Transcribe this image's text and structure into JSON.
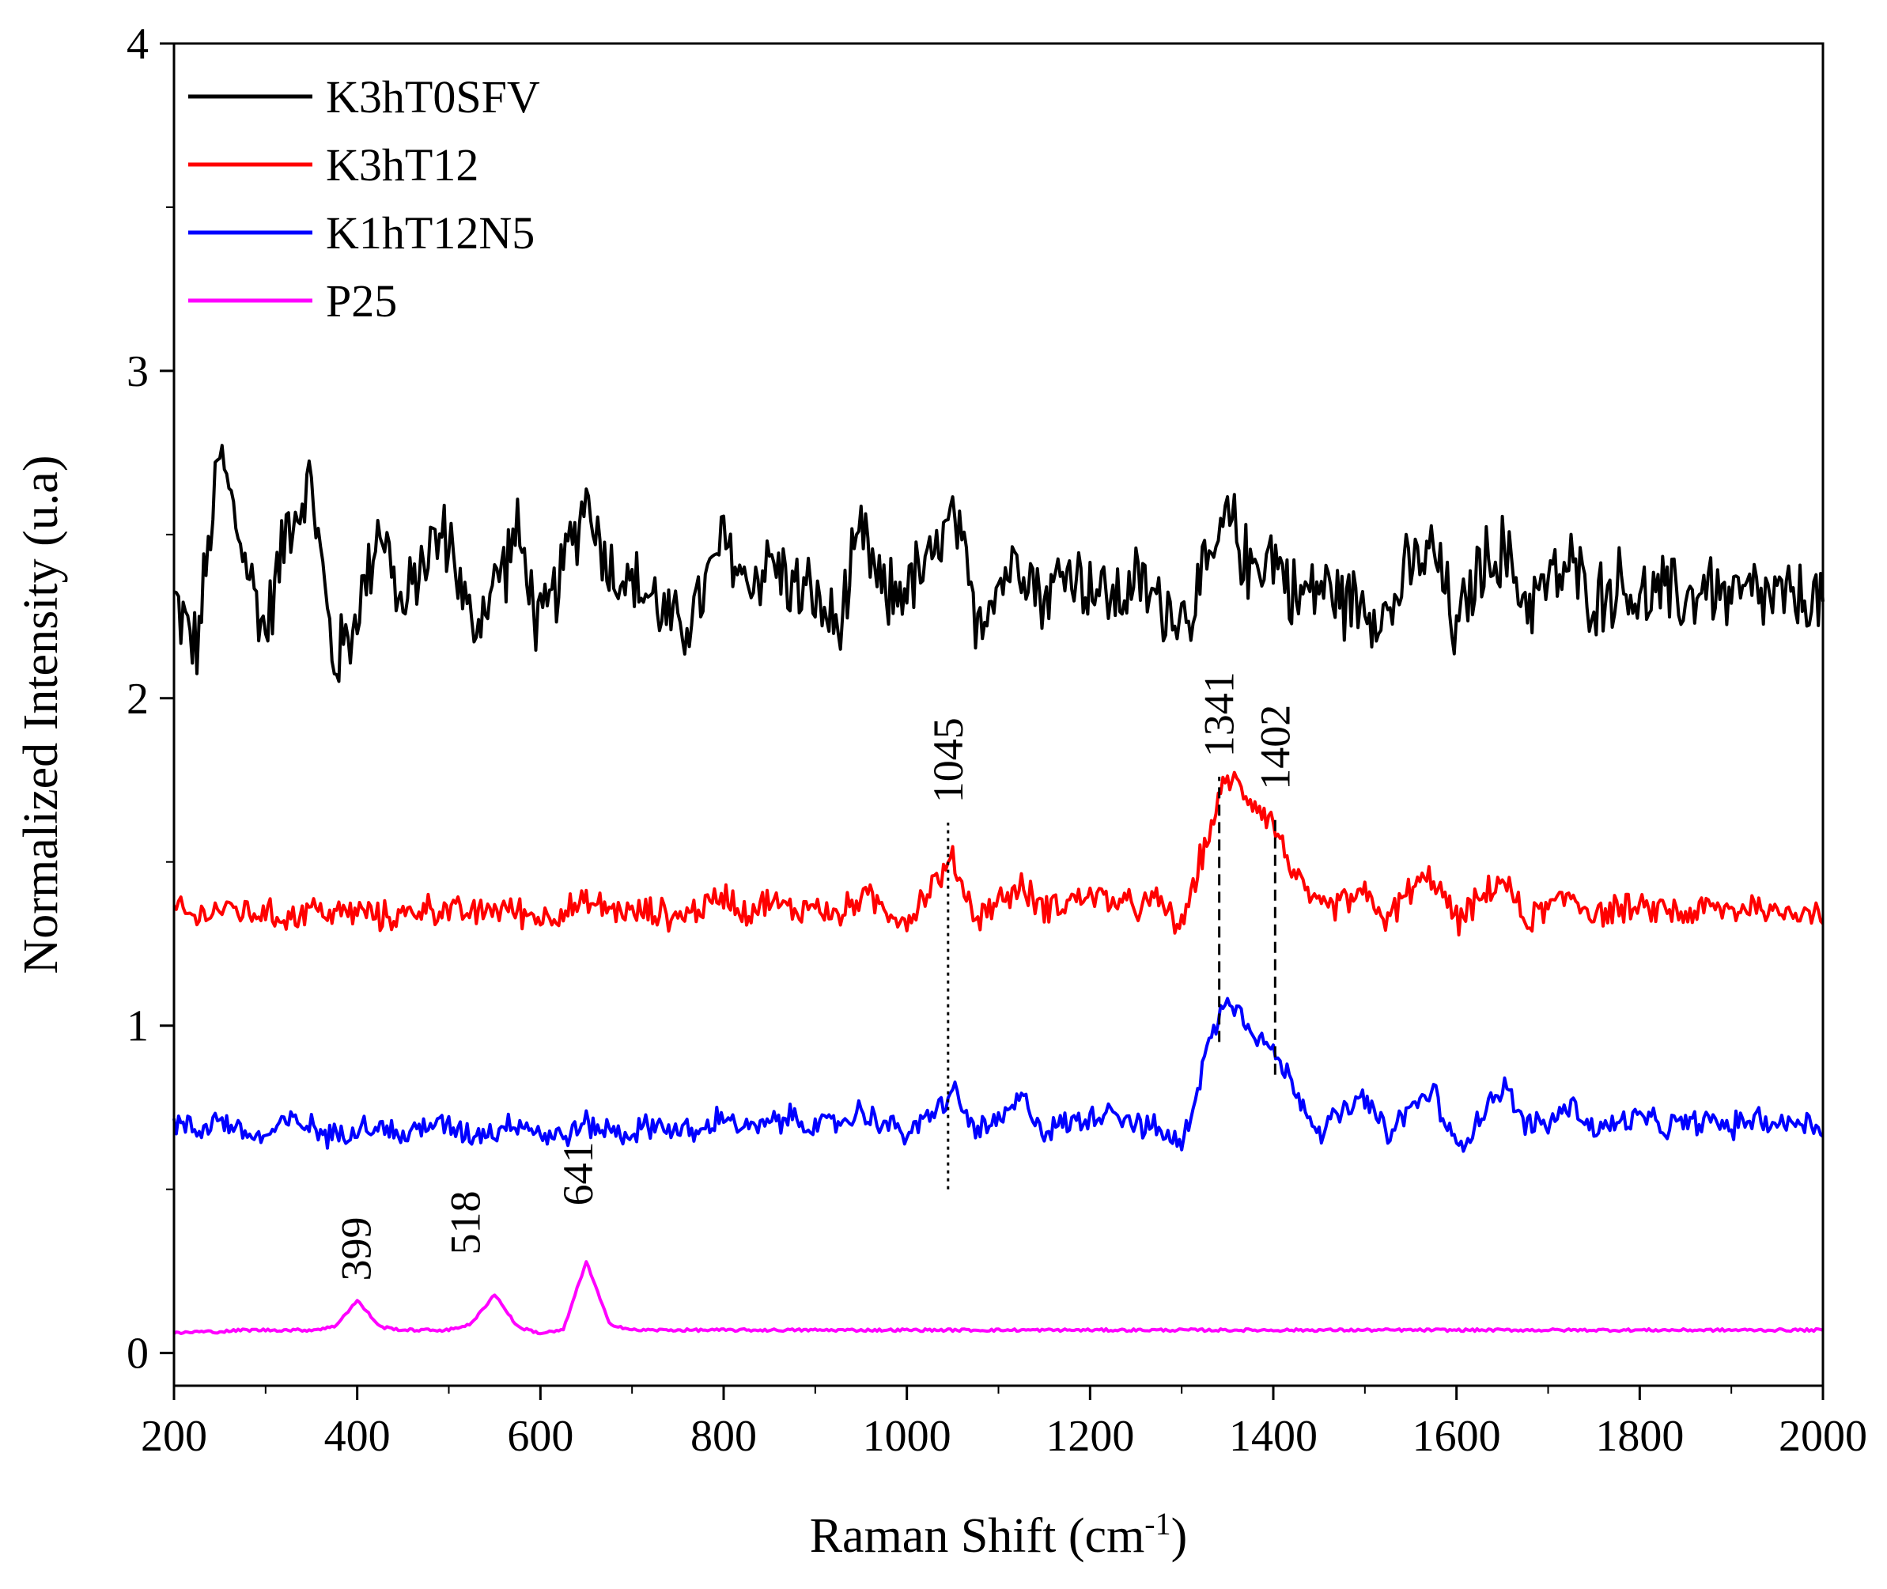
{
  "chart_data": {
    "type": "line",
    "title": "",
    "xlabel": "Raman Shift (cm-1)",
    "xlabel_main": "Raman Shift (cm",
    "xlabel_sup": "-1",
    "xlabel_close": ")",
    "ylabel": "Normalized Intensity (u.a)",
    "xlim": [
      200,
      2000
    ],
    "ylim": [
      -0.1,
      4
    ],
    "xticks": [
      200,
      400,
      600,
      800,
      1000,
      1200,
      1400,
      1600,
      1800,
      2000
    ],
    "yticks": [
      0,
      1,
      2,
      3,
      4
    ],
    "legend_position": "top-left",
    "x": [
      200,
      225,
      250,
      275,
      300,
      325,
      350,
      375,
      400,
      425,
      450,
      475,
      500,
      525,
      550,
      575,
      600,
      625,
      650,
      675,
      700,
      725,
      750,
      775,
      800,
      825,
      850,
      875,
      900,
      925,
      950,
      975,
      1000,
      1025,
      1050,
      1075,
      1100,
      1125,
      1150,
      1175,
      1200,
      1225,
      1250,
      1275,
      1300,
      1325,
      1350,
      1375,
      1400,
      1425,
      1450,
      1475,
      1500,
      1525,
      1550,
      1575,
      1600,
      1625,
      1650,
      1675,
      1700,
      1725,
      1750,
      1775,
      1800,
      1825,
      1850,
      1875,
      1900,
      1925,
      1950,
      1975,
      2000
    ],
    "series": [
      {
        "name": "K3hT0SFV",
        "color": "#000000",
        "values": [
          2.3,
          2.15,
          2.75,
          2.45,
          2.2,
          2.55,
          2.65,
          2.1,
          2.25,
          2.55,
          2.25,
          2.45,
          2.5,
          2.2,
          2.35,
          2.5,
          2.2,
          2.4,
          2.62,
          2.4,
          2.35,
          2.3,
          2.2,
          2.3,
          2.48,
          2.35,
          2.42,
          2.35,
          2.3,
          2.2,
          2.5,
          2.3,
          2.35,
          2.4,
          2.55,
          2.25,
          2.35,
          2.45,
          2.3,
          2.4,
          2.35,
          2.3,
          2.35,
          2.3,
          2.25,
          2.35,
          2.55,
          2.4,
          2.45,
          2.3,
          2.35,
          2.3,
          2.3,
          2.25,
          2.4,
          2.45,
          2.2,
          2.4,
          2.45,
          2.3,
          2.35,
          2.4,
          2.3,
          2.35,
          2.3,
          2.32,
          2.3,
          2.35,
          2.3,
          2.32,
          2.3,
          2.3,
          2.3
        ]
      },
      {
        "name": "K3hT12",
        "color": "#ff0000",
        "values": [
          1.35,
          1.33,
          1.36,
          1.35,
          1.34,
          1.33,
          1.36,
          1.34,
          1.35,
          1.33,
          1.34,
          1.36,
          1.35,
          1.34,
          1.36,
          1.35,
          1.33,
          1.35,
          1.37,
          1.36,
          1.34,
          1.35,
          1.33,
          1.36,
          1.4,
          1.35,
          1.38,
          1.35,
          1.37,
          1.33,
          1.4,
          1.36,
          1.32,
          1.42,
          1.5,
          1.33,
          1.38,
          1.42,
          1.36,
          1.38,
          1.4,
          1.38,
          1.36,
          1.38,
          1.3,
          1.55,
          1.76,
          1.7,
          1.62,
          1.45,
          1.35,
          1.38,
          1.4,
          1.32,
          1.42,
          1.45,
          1.32,
          1.38,
          1.45,
          1.32,
          1.36,
          1.4,
          1.34,
          1.36,
          1.35,
          1.36,
          1.34,
          1.36,
          1.35,
          1.37,
          1.34,
          1.36,
          1.34
        ]
      },
      {
        "name": "K1hT12N5",
        "color": "#0000ff",
        "values": [
          0.7,
          0.68,
          0.72,
          0.67,
          0.66,
          0.71,
          0.69,
          0.66,
          0.7,
          0.69,
          0.66,
          0.7,
          0.69,
          0.67,
          0.68,
          0.71,
          0.67,
          0.66,
          0.7,
          0.68,
          0.67,
          0.7,
          0.68,
          0.67,
          0.73,
          0.68,
          0.7,
          0.72,
          0.69,
          0.7,
          0.74,
          0.7,
          0.67,
          0.72,
          0.8,
          0.68,
          0.7,
          0.78,
          0.68,
          0.7,
          0.72,
          0.75,
          0.7,
          0.68,
          0.63,
          0.9,
          1.1,
          1.0,
          0.92,
          0.8,
          0.68,
          0.73,
          0.78,
          0.66,
          0.75,
          0.8,
          0.62,
          0.72,
          0.82,
          0.7,
          0.7,
          0.76,
          0.68,
          0.7,
          0.72,
          0.69,
          0.7,
          0.71,
          0.69,
          0.72,
          0.7,
          0.71,
          0.69
        ]
      },
      {
        "name": "P25",
        "color": "#ff00ff",
        "values": [
          0.06,
          0.065,
          0.065,
          0.07,
          0.07,
          0.07,
          0.07,
          0.08,
          0.16,
          0.08,
          0.07,
          0.07,
          0.07,
          0.09,
          0.18,
          0.08,
          0.06,
          0.07,
          0.28,
          0.09,
          0.07,
          0.07,
          0.07,
          0.07,
          0.07,
          0.07,
          0.07,
          0.07,
          0.07,
          0.07,
          0.07,
          0.07,
          0.07,
          0.07,
          0.07,
          0.07,
          0.07,
          0.07,
          0.07,
          0.07,
          0.07,
          0.07,
          0.07,
          0.07,
          0.07,
          0.07,
          0.07,
          0.07,
          0.07,
          0.07,
          0.07,
          0.07,
          0.07,
          0.07,
          0.07,
          0.07,
          0.07,
          0.07,
          0.07,
          0.07,
          0.07,
          0.07,
          0.07,
          0.07,
          0.07,
          0.07,
          0.07,
          0.07,
          0.07,
          0.07,
          0.07,
          0.07,
          0.07
        ]
      }
    ],
    "annotations": [
      {
        "label": "399",
        "x": 399,
        "y_text": 0.22,
        "style": "none",
        "line_y": [
          0,
          0
        ]
      },
      {
        "label": "518",
        "x": 518,
        "y_text": 0.3,
        "style": "none",
        "line_y": [
          0,
          0
        ]
      },
      {
        "label": "641",
        "x": 641,
        "y_text": 0.45,
        "style": "none",
        "line_y": [
          0,
          0
        ]
      },
      {
        "label": "1045",
        "x": 1045,
        "y_text": 1.68,
        "style": "dotted",
        "line_y": [
          0.5,
          1.62
        ]
      },
      {
        "label": "1341",
        "x": 1341,
        "y_text": 1.82,
        "style": "dashed",
        "line_y": [
          0.95,
          1.76
        ]
      },
      {
        "label": "1402",
        "x": 1402,
        "y_text": 1.72,
        "style": "dashed",
        "line_y": [
          0.85,
          1.64
        ]
      }
    ]
  }
}
